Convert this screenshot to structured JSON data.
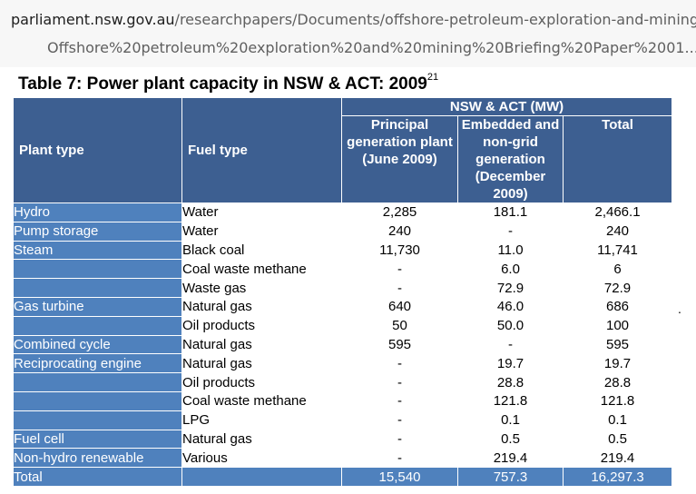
{
  "url": {
    "host": "parliament.nsw.gov.au",
    "path": "/researchpapers/Documents/offshore-petroleum-exploration-and-mining/",
    "line2": "Offshore%20petroleum%20exploration%20and%20mining%20Briefing%20Paper%2001..."
  },
  "table_title": "Table 7: Power plant capacity in NSW & ACT: 2009",
  "footnote_ref": "21",
  "stray_mark": ".",
  "headers": {
    "plant_type": "Plant type",
    "fuel_type": "Fuel type",
    "group": "NSW & ACT (MW)",
    "principal": "Principal generation plant (June 2009)",
    "embedded": "Embedded and non-grid generation (December 2009)",
    "total": "Total"
  },
  "rows": [
    {
      "plant": "Hydro",
      "fuel": "Water",
      "principal": "2,285",
      "embedded": "181.1",
      "total": "2,466.1"
    },
    {
      "plant": "Pump storage",
      "fuel": "Water",
      "principal": "240",
      "embedded": "-",
      "total": "240"
    },
    {
      "plant": "Steam",
      "fuel": "Black coal",
      "principal": "11,730",
      "embedded": "11.0",
      "total": "11,741"
    },
    {
      "plant": "",
      "fuel": "Coal waste methane",
      "principal": "-",
      "embedded": "6.0",
      "total": "6"
    },
    {
      "plant": "",
      "fuel": "Waste gas",
      "principal": "-",
      "embedded": "72.9",
      "total": "72.9"
    },
    {
      "plant": "Gas turbine",
      "fuel": "Natural gas",
      "principal": "640",
      "embedded": "46.0",
      "total": "686"
    },
    {
      "plant": "",
      "fuel": "Oil products",
      "principal": "50",
      "embedded": "50.0",
      "total": "100"
    },
    {
      "plant": "Combined cycle",
      "fuel": "Natural gas",
      "principal": "595",
      "embedded": "-",
      "total": "595"
    },
    {
      "plant": "Reciprocating engine",
      "fuel": "Natural gas",
      "principal": "-",
      "embedded": "19.7",
      "total": "19.7"
    },
    {
      "plant": "",
      "fuel": "Oil products",
      "principal": "-",
      "embedded": "28.8",
      "total": "28.8"
    },
    {
      "plant": "",
      "fuel": "Coal waste methane",
      "principal": "-",
      "embedded": "121.8",
      "total": "121.8"
    },
    {
      "plant": "",
      "fuel": "LPG",
      "principal": "-",
      "embedded": "0.1",
      "total": "0.1"
    },
    {
      "plant": "Fuel cell",
      "fuel": "Natural gas",
      "principal": "-",
      "embedded": "0.5",
      "total": "0.5"
    },
    {
      "plant": "Non-hydro renewable",
      "fuel": "Various",
      "principal": "-",
      "embedded": "219.4",
      "total": "219.4"
    }
  ],
  "total_row": {
    "label": "Total",
    "fuel": "",
    "principal": "15,540",
    "embedded": "757.3",
    "total": "16,297.3"
  },
  "colors": {
    "header_bg": "#3d5f91",
    "plant_bg": "#4f81bd",
    "text_light": "#ffffff"
  }
}
